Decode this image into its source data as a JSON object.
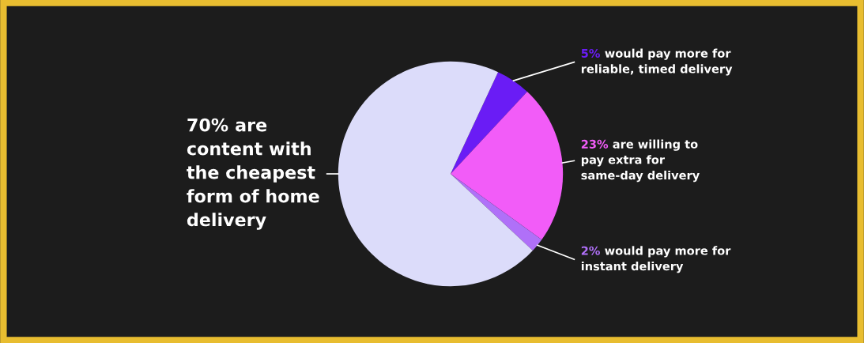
{
  "chart_data": {
    "type": "pie",
    "categories": [
      "would pay more for\nreliable, timed delivery",
      "are willing to\npay extra for\nsame-day delivery",
      "would pay more for\ninstant delivery",
      "are\ncontent with\nthe cheapest\nform of home\ndelivery"
    ],
    "values": [
      5,
      23,
      2,
      70
    ],
    "value_labels": [
      "5%",
      "23%",
      "2%",
      "70%"
    ],
    "colors": [
      "#6a1cf5",
      "#f25cf8",
      "#b070f8",
      "#dcdcfa"
    ]
  }
}
